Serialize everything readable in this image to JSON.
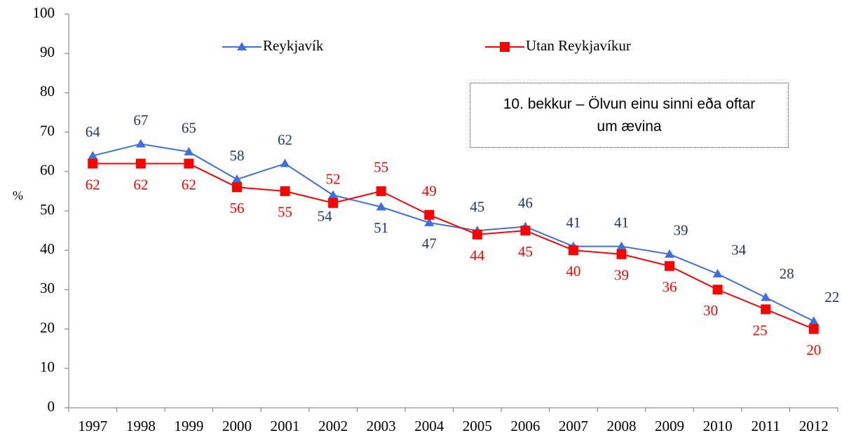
{
  "chart_data": {
    "type": "line",
    "annotation": "10. bekkur – Ölvun einu sinni eða oftar um ævina",
    "y_label": "%",
    "categories": [
      "1997",
      "1998",
      "1999",
      "2000",
      "2001",
      "2002",
      "2003",
      "2004",
      "2005",
      "2006",
      "2007",
      "2008",
      "2009",
      "2010",
      "2011",
      "2012"
    ],
    "series": [
      {
        "name": "Reykjavík",
        "color": "#3f6fdc",
        "label_color": "#1f3864",
        "marker": "triangle",
        "values": [
          64,
          67,
          65,
          58,
          62,
          54,
          51,
          47,
          45,
          46,
          41,
          41,
          39,
          34,
          28,
          22
        ]
      },
      {
        "name": "Utan Reykjavíkur",
        "color": "#ff0000",
        "label_color": "#ff0000",
        "marker": "square",
        "values": [
          62,
          62,
          62,
          56,
          55,
          52,
          55,
          49,
          44,
          45,
          40,
          39,
          36,
          30,
          25,
          20
        ]
      }
    ],
    "ylim": [
      0,
      100
    ],
    "yticks": [
      0,
      10,
      20,
      30,
      40,
      50,
      60,
      70,
      80,
      90,
      100
    ]
  }
}
